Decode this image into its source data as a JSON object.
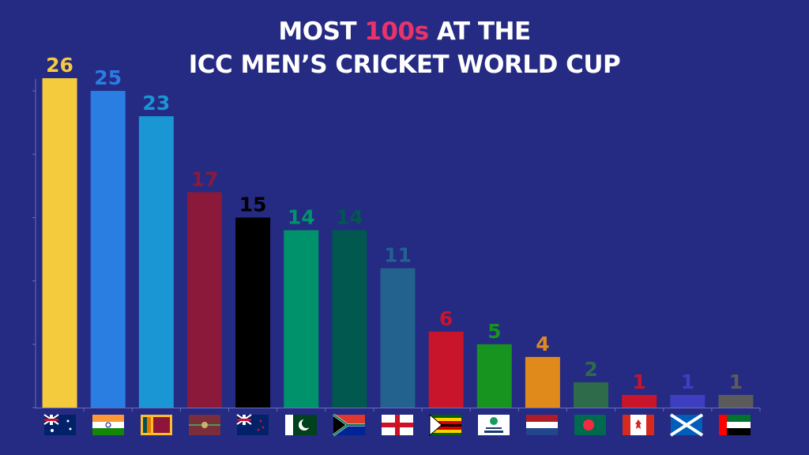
{
  "chart_data": {
    "type": "bar",
    "title": [
      "MOST",
      "100s",
      "AT THE",
      "ICC MEN’S CRICKET WORLD CUP"
    ],
    "title_highlight_color": "#e8336b",
    "categories": [
      null,
      null,
      null,
      null,
      null,
      null,
      null,
      null,
      null,
      null,
      null,
      null,
      null,
      null,
      null
    ],
    "values": [
      26,
      25,
      23,
      17,
      15,
      14,
      14,
      11,
      6,
      5,
      4,
      2,
      1,
      1,
      1
    ],
    "colors": [
      "#f5cb3e",
      "#2a7de1",
      "#1a96d4",
      "#8b1a3a",
      "#000000",
      "#00936b",
      "#00584f",
      "#23628f",
      "#c8152c",
      "#17931f",
      "#e08a1c",
      "#2e6b4b",
      "#c8152c",
      "#3d3fc0",
      "#5b5b5b"
    ],
    "ylim": [
      0,
      26
    ],
    "yticks": [
      0,
      5,
      10,
      15,
      20,
      25
    ],
    "grid": false
  }
}
